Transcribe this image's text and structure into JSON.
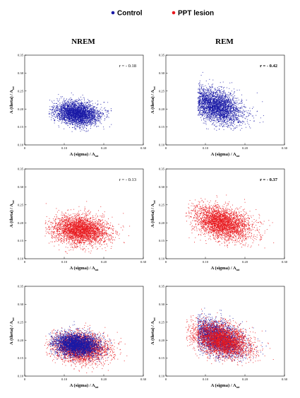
{
  "legend": [
    {
      "label": "Control",
      "color": "#1a1aa6"
    },
    {
      "label": "PPT lesion",
      "color": "#e8191e"
    }
  ],
  "columns": [
    "NREM",
    "REM"
  ],
  "axis_labels": {
    "x": "A (sigma) / A",
    "x_sub": "tot",
    "y": "A (theta) / A",
    "y_sub": "tot"
  },
  "chart_data": [
    {
      "type": "scatter",
      "row": "Control",
      "column": "NREM",
      "r_label": "r = - 0.18",
      "r_bold": false,
      "xlim": [
        0,
        0.3
      ],
      "ylim": [
        0.1,
        0.35
      ],
      "xticks": [
        "0",
        "0.10",
        "0.20",
        "0.30"
      ],
      "yticks": [
        "0.10",
        "0.15",
        "0.20",
        "0.25",
        "0.30",
        "0.35"
      ],
      "series": [
        {
          "name": "Control",
          "color": "#1a1aa6",
          "center": [
            0.13,
            0.188
          ],
          "spread": [
            0.028,
            0.016
          ],
          "x_range": [
            0.06,
            0.22
          ],
          "y_range": [
            0.13,
            0.26
          ],
          "corr": -0.18
        }
      ]
    },
    {
      "type": "scatter",
      "row": "Control",
      "column": "REM",
      "r_label": "r = - 0.42",
      "r_bold": true,
      "xlim": [
        0,
        0.3
      ],
      "ylim": [
        0.1,
        0.35
      ],
      "xticks": [
        "0",
        "0.10",
        "0.20",
        "0.30"
      ],
      "yticks": [
        "0.10",
        "0.15",
        "0.20",
        "0.25",
        "0.30",
        "0.35"
      ],
      "series": [
        {
          "name": "Control",
          "color": "#1a1aa6",
          "center": [
            0.125,
            0.208
          ],
          "spread": [
            0.032,
            0.025
          ],
          "x_range": [
            0.08,
            0.28
          ],
          "y_range": [
            0.14,
            0.32
          ],
          "corr": -0.42
        }
      ]
    },
    {
      "type": "scatter",
      "row": "PPT lesion",
      "column": "NREM",
      "r_label": "r = - 0.13",
      "r_bold": false,
      "xlim": [
        0,
        0.3
      ],
      "ylim": [
        0.1,
        0.35
      ],
      "xticks": [
        "0",
        "0.10",
        "0.20",
        "0.30"
      ],
      "yticks": [
        "0.10",
        "0.15",
        "0.20",
        "0.25",
        "0.30",
        "0.35"
      ],
      "series": [
        {
          "name": "PPT lesion",
          "color": "#e8191e",
          "center": [
            0.14,
            0.18
          ],
          "spread": [
            0.034,
            0.02
          ],
          "x_range": [
            0.05,
            0.27
          ],
          "y_range": [
            0.11,
            0.28
          ],
          "corr": -0.13
        }
      ]
    },
    {
      "type": "scatter",
      "row": "PPT lesion",
      "column": "REM",
      "r_label": "r = - 0.37",
      "r_bold": true,
      "xlim": [
        0,
        0.3
      ],
      "ylim": [
        0.1,
        0.35
      ],
      "xticks": [
        "0",
        "0.10",
        "0.20",
        "0.30"
      ],
      "yticks": [
        "0.10",
        "0.15",
        "0.20",
        "0.25",
        "0.30",
        "0.35"
      ],
      "series": [
        {
          "name": "PPT lesion",
          "color": "#e8191e",
          "center": [
            0.14,
            0.2
          ],
          "spread": [
            0.035,
            0.024
          ],
          "x_range": [
            0.05,
            0.28
          ],
          "y_range": [
            0.13,
            0.32
          ],
          "corr": -0.37
        }
      ]
    },
    {
      "type": "scatter",
      "row": "Overlay",
      "column": "NREM",
      "r_label": "",
      "r_bold": false,
      "xlim": [
        0,
        0.3
      ],
      "ylim": [
        0.1,
        0.35
      ],
      "xticks": [
        "0",
        "0.10",
        "0.20",
        "0.30"
      ],
      "yticks": [
        "0.10",
        "0.15",
        "0.20",
        "0.25",
        "0.30",
        "0.35"
      ],
      "series": [
        {
          "name": "PPT lesion",
          "color": "#e8191e",
          "center": [
            0.14,
            0.18
          ],
          "spread": [
            0.034,
            0.02
          ],
          "x_range": [
            0.05,
            0.27
          ],
          "y_range": [
            0.11,
            0.28
          ],
          "corr": -0.13
        },
        {
          "name": "Control",
          "color": "#1a1aa6",
          "center": [
            0.13,
            0.188
          ],
          "spread": [
            0.028,
            0.016
          ],
          "x_range": [
            0.06,
            0.22
          ],
          "y_range": [
            0.13,
            0.26
          ],
          "corr": -0.18
        }
      ]
    },
    {
      "type": "scatter",
      "row": "Overlay",
      "column": "REM",
      "r_label": "",
      "r_bold": false,
      "xlim": [
        0,
        0.3
      ],
      "ylim": [
        0.1,
        0.35
      ],
      "xticks": [
        "0",
        "0.10",
        "0.20",
        "0.30"
      ],
      "yticks": [
        "0.10",
        "0.15",
        "0.20",
        "0.25",
        "0.30",
        "0.35"
      ],
      "series": [
        {
          "name": "Control",
          "color": "#1a1aa6",
          "center": [
            0.125,
            0.208
          ],
          "spread": [
            0.032,
            0.025
          ],
          "x_range": [
            0.08,
            0.28
          ],
          "y_range": [
            0.14,
            0.32
          ],
          "corr": -0.42
        },
        {
          "name": "PPT lesion",
          "color": "#e8191e",
          "center": [
            0.14,
            0.2
          ],
          "spread": [
            0.035,
            0.024
          ],
          "x_range": [
            0.05,
            0.28
          ],
          "y_range": [
            0.13,
            0.32
          ],
          "corr": -0.37
        }
      ]
    }
  ]
}
